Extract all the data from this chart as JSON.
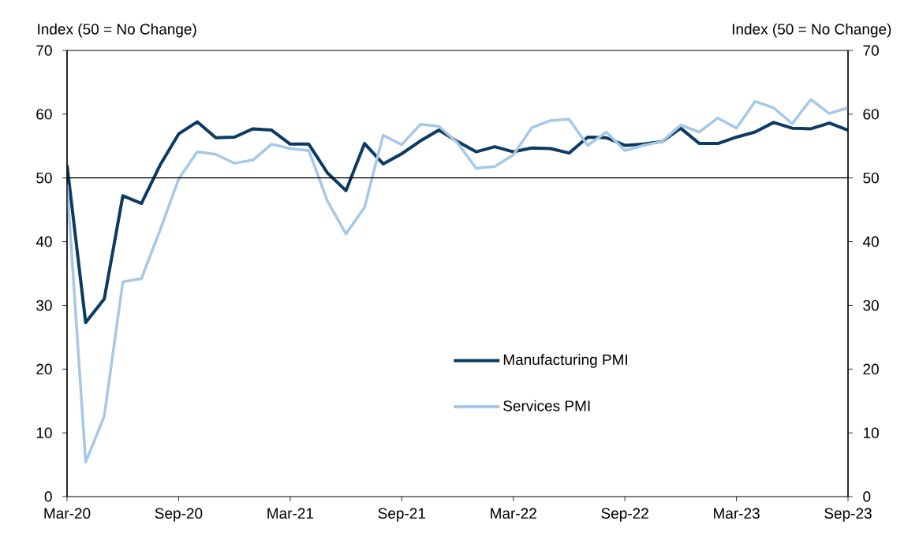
{
  "chart_data": {
    "type": "line",
    "ylabel": "Index (50 = No Change)",
    "y2label": "Index (50 = No Change)",
    "x": [
      "2020-03",
      "2020-04",
      "2020-05",
      "2020-06",
      "2020-07",
      "2020-08",
      "2020-09",
      "2020-10",
      "2020-11",
      "2020-12",
      "2021-01",
      "2021-02",
      "2021-03",
      "2021-04",
      "2021-05",
      "2021-06",
      "2021-07",
      "2021-08",
      "2021-09",
      "2021-10",
      "2021-11",
      "2021-12",
      "2022-01",
      "2022-02",
      "2022-03",
      "2022-04",
      "2022-05",
      "2022-06",
      "2022-07",
      "2022-08",
      "2022-09",
      "2022-10",
      "2022-11",
      "2022-12",
      "2023-01",
      "2023-02",
      "2023-03",
      "2023-04",
      "2023-05",
      "2023-06",
      "2023-07",
      "2023-08",
      "2023-09"
    ],
    "series": [
      {
        "name": "Manufacturing PMI",
        "color": "#0b3a63",
        "values": [
          52,
          27.3,
          31,
          47.2,
          46,
          52,
          56.9,
          58.8,
          56.3,
          56.4,
          57.7,
          57.5,
          55.3,
          55.3,
          50.8,
          48,
          55.4,
          52.2,
          53.8,
          55.8,
          57.5,
          55.7,
          54.1,
          54.9,
          54.1,
          54.7,
          54.6,
          53.9,
          56.4,
          56.3,
          55.1,
          55.3,
          55.7,
          57.8,
          55.4,
          55.4,
          56.4,
          57.2,
          58.7,
          57.8,
          57.7,
          58.6,
          57.5
        ]
      },
      {
        "name": "Services PMI",
        "color": "#a6c8e8",
        "values": [
          49,
          5.4,
          12.6,
          33.7,
          34.2,
          41.8,
          49.8,
          54.1,
          53.7,
          52.3,
          52.8,
          55.3,
          54.6,
          54.3,
          46.4,
          41.2,
          45.4,
          56.7,
          55.2,
          58.4,
          58.1,
          55.5,
          51.5,
          51.8,
          53.6,
          57.9,
          59,
          59.2,
          55.1,
          57.2,
          54.3,
          55.1,
          55.7,
          58.3,
          57.2,
          59.4,
          57.8,
          62,
          61,
          58.5,
          62.3,
          60.1,
          61
        ]
      }
    ],
    "xlim": [
      "2020-03",
      "2023-09"
    ],
    "xticks": [
      {
        "value": "2020-03",
        "label": "Mar-20"
      },
      {
        "value": "2020-09",
        "label": "Sep-20"
      },
      {
        "value": "2021-03",
        "label": "Mar-21"
      },
      {
        "value": "2021-09",
        "label": "Sep-21"
      },
      {
        "value": "2022-03",
        "label": "Mar-22"
      },
      {
        "value": "2022-09",
        "label": "Sep-22"
      },
      {
        "value": "2023-03",
        "label": "Mar-23"
      },
      {
        "value": "2023-09",
        "label": "Sep-23"
      }
    ],
    "ylim": [
      0,
      70
    ],
    "yticks": [
      0,
      10,
      20,
      30,
      40,
      50,
      60,
      70
    ],
    "y2lim": [
      0,
      70
    ],
    "y2ticks": [
      0,
      10,
      20,
      30,
      40,
      50,
      60,
      70
    ],
    "ref_lines": [
      {
        "axis": "y",
        "value": 50,
        "color": "#000000"
      }
    ],
    "legend": "bottom right",
    "line_style": "solid"
  }
}
